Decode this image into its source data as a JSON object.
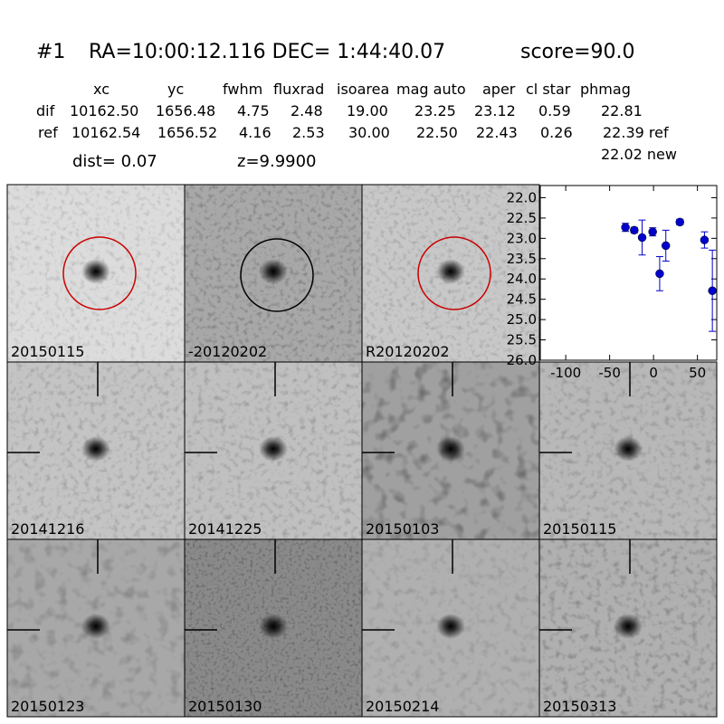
{
  "header": {
    "id": "#1",
    "coords": "RA=10:00:12.116 DEC= 1:44:40.07",
    "score": "score=90.0"
  },
  "table": {
    "columns": [
      "xc",
      "yc",
      "fwhm",
      "fluxrad",
      "isoarea",
      "mag auto",
      "aper",
      "cl star",
      "phmag"
    ],
    "rows": [
      [
        "dif",
        "10162.50",
        "1656.48",
        "4.75",
        "2.48",
        "19.00",
        "23.25",
        "23.12",
        "0.59",
        "22.81"
      ],
      [
        "ref",
        "10162.54",
        "1656.52",
        "4.16",
        "2.53",
        "30.00",
        "22.50",
        "22.43",
        "0.26",
        "22.39 ref"
      ]
    ],
    "extra": "22.02 new"
  },
  "dist": "dist=  0.07",
  "z": "z=9.9900",
  "panels": [
    {
      "label": "20150115"
    },
    {
      "label": "-20120202"
    },
    {
      "label": "R20120202"
    },
    {
      "label": "20141216"
    },
    {
      "label": "20141225"
    },
    {
      "label": "20150103"
    },
    {
      "label": "20150115",
      "color": "#ff0000"
    },
    {
      "label": "20150123"
    },
    {
      "label": "20150130"
    },
    {
      "label": "20150214"
    },
    {
      "label": "20150313"
    }
  ],
  "chart_data": {
    "type": "scatter",
    "x": [
      -32,
      -22,
      -13,
      -1,
      7,
      14,
      30,
      58,
      67
    ],
    "series": [
      {
        "values": [
          22.73,
          22.8,
          22.98,
          22.84,
          23.87,
          23.18,
          22.6,
          23.04,
          24.29
        ],
        "errors": [
          0.1,
          0.07,
          0.43,
          0.1,
          0.42,
          0.38,
          0.07,
          0.2,
          1.0
        ],
        "color": "#0000cc"
      }
    ],
    "xlim": [
      -129,
      72
    ],
    "ylim": [
      21.7,
      26.0
    ],
    "y_inverted": true,
    "xticks": [
      -100,
      -50,
      0,
      50
    ],
    "yticks": [
      {
        "value": 22,
        "label": "22.0"
      },
      {
        "value": 22.5,
        "label": "22.5"
      },
      {
        "value": 23,
        "label": "23.0"
      },
      {
        "value": 23.5,
        "label": "23.5"
      },
      {
        "value": 24,
        "label": "24.0"
      },
      {
        "value": 24.5,
        "label": "24.5"
      },
      {
        "value": 25,
        "label": "25.0"
      },
      {
        "value": 25.5,
        "label": "25.5"
      },
      {
        "value": 26,
        "label": "26.0"
      }
    ]
  }
}
